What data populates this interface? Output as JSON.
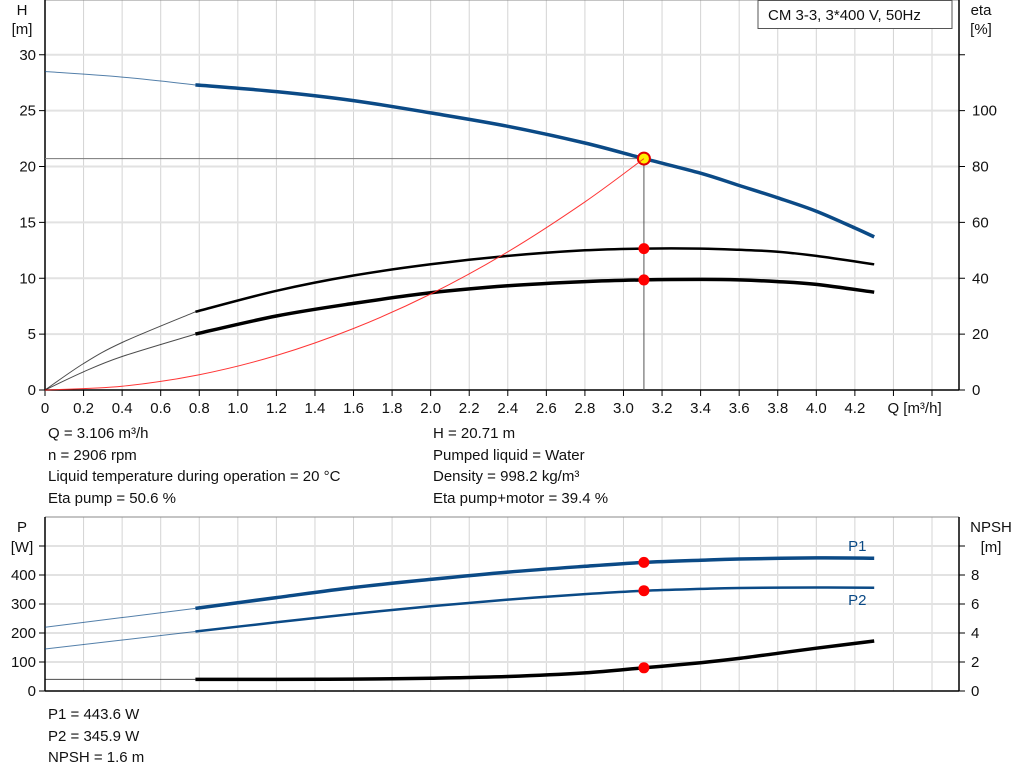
{
  "chart_data": [
    {
      "type": "line",
      "title": "CM 3-3, 3*400 V, 50Hz",
      "xlabel": "Q [m³/h]",
      "ylabel_left": [
        "H",
        "[m]"
      ],
      "ylabel_right": [
        "eta",
        "[%]"
      ],
      "xlim": [
        0,
        4.74
      ],
      "ylim_left": [
        0,
        34.9
      ],
      "ylim_right": [
        0,
        139.6
      ],
      "x_ticks": [
        "0",
        "0.2",
        "0.4",
        "0.6",
        "0.8",
        "1.0",
        "1.2",
        "1.4",
        "1.6",
        "1.8",
        "2.0",
        "2.2",
        "2.4",
        "2.6",
        "2.8",
        "3.0",
        "3.2",
        "3.4",
        "3.6",
        "3.8",
        "4.0",
        "4.2"
      ],
      "y_ticks_left": [
        "0",
        "5",
        "10",
        "15",
        "20",
        "25",
        "30"
      ],
      "y_ticks_right": [
        "0",
        "20",
        "40",
        "60",
        "80",
        "100"
      ],
      "grid": true,
      "series": [
        {
          "id": "head",
          "axis": "left",
          "color": "#0b4a86",
          "thick_from": 0.78,
          "x": [
            0,
            0.4,
            0.78,
            1.2,
            1.6,
            2.0,
            2.4,
            2.8,
            3.106,
            3.4,
            3.6,
            3.8,
            4.0,
            4.2,
            4.3
          ],
          "y": [
            28.5,
            28.0,
            27.3,
            26.7,
            25.9,
            24.8,
            23.6,
            22.1,
            20.71,
            19.4,
            18.3,
            17.2,
            16.0,
            14.5,
            13.7
          ]
        },
        {
          "id": "eta-pump",
          "axis": "right",
          "color": "#000000",
          "thick_from": 0.78,
          "x": [
            0,
            0.2,
            0.4,
            0.78,
            1.2,
            1.6,
            2.0,
            2.4,
            2.8,
            3.106,
            3.4,
            3.6,
            3.8,
            4.0,
            4.3
          ],
          "y": [
            0,
            9.5,
            17,
            28,
            35.5,
            41,
            45,
            48,
            50,
            50.6,
            50.6,
            50.2,
            49.5,
            48,
            45
          ]
        },
        {
          "id": "eta-pump-motor",
          "axis": "right",
          "color": "#000000",
          "thick_from": 0.78,
          "x": [
            0,
            0.2,
            0.4,
            0.78,
            1.2,
            1.6,
            2.0,
            2.4,
            2.8,
            3.106,
            3.4,
            3.6,
            3.8,
            4.0,
            4.3
          ],
          "y": [
            0,
            6.5,
            12,
            20,
            26.5,
            31,
            34.8,
            37.3,
            38.8,
            39.4,
            39.6,
            39.4,
            38.8,
            37.8,
            35
          ]
        },
        {
          "id": "system-curve",
          "axis": "left",
          "color": "#ff2020",
          "thick_from": null,
          "x": [
            0,
            0.4,
            0.8,
            1.2,
            1.6,
            2.0,
            2.4,
            2.8,
            3.106
          ],
          "y": [
            0,
            0.34,
            1.37,
            3.09,
            5.5,
            8.59,
            12.37,
            16.83,
            20.71
          ]
        }
      ],
      "operating_point": {
        "q": 3.106,
        "h": 20.71,
        "eta_pump": 50.6,
        "eta_pump_motor": 39.4
      }
    },
    {
      "type": "line",
      "xlim": [
        0,
        4.74
      ],
      "ylabel_left": [
        "P",
        "[W]"
      ],
      "ylabel_right": [
        "NPSH",
        "[m]"
      ],
      "ylim_left": [
        0,
        600
      ],
      "ylim_right": [
        0,
        12
      ],
      "y_ticks_left": [
        "0",
        "100",
        "200",
        "300",
        "400"
      ],
      "y_ticks_right": [
        "0",
        "2",
        "4",
        "6",
        "8"
      ],
      "grid": true,
      "series": [
        {
          "id": "p1",
          "name": "P1",
          "axis": "left",
          "color": "#0b4a86",
          "thick_from": 0.78,
          "x": [
            0,
            0.78,
            1.2,
            1.6,
            2.0,
            2.4,
            2.8,
            3.106,
            3.4,
            3.6,
            4.0,
            4.3
          ],
          "y": [
            220,
            285,
            322,
            357,
            385,
            410,
            430,
            443.6,
            451,
            455,
            459,
            458
          ]
        },
        {
          "id": "p2",
          "name": "P2",
          "axis": "left",
          "color": "#0b4a86",
          "thick_from": 0.78,
          "x": [
            0,
            0.78,
            1.2,
            1.6,
            2.0,
            2.4,
            2.8,
            3.106,
            3.4,
            3.6,
            4.0,
            4.3
          ],
          "y": [
            145,
            205,
            237,
            266,
            292,
            315,
            334,
            345.9,
            352,
            355,
            357,
            356
          ]
        },
        {
          "id": "npsh",
          "axis": "right",
          "color": "#000000",
          "thick_from": 0.78,
          "x": [
            0,
            0.6,
            0.78,
            1.2,
            1.6,
            2.0,
            2.4,
            2.8,
            3.106,
            3.4,
            3.6,
            3.8,
            4.0,
            4.3
          ],
          "y": [
            0.8,
            0.8,
            0.8,
            0.8,
            0.82,
            0.88,
            1.0,
            1.25,
            1.6,
            1.95,
            2.25,
            2.6,
            2.95,
            3.45
          ]
        }
      ],
      "operating_point": {
        "q": 3.106,
        "p1": 443.6,
        "p2": 345.9,
        "npsh": 1.6
      }
    }
  ],
  "info_top_left": [
    "Q = 3.106 m³/h",
    "n = 2906 rpm",
    "Liquid temperature during operation = 20 °C",
    "Eta pump = 50.6 %"
  ],
  "info_top_right": [
    "H = 20.71 m",
    "Pumped liquid = Water",
    "Density = 998.2 kg/m³",
    "Eta pump+motor = 39.4 %"
  ],
  "info_bottom": [
    "P1 = 443.6 W",
    "P2 = 345.9 W",
    "NPSH = 1.6 m"
  ]
}
